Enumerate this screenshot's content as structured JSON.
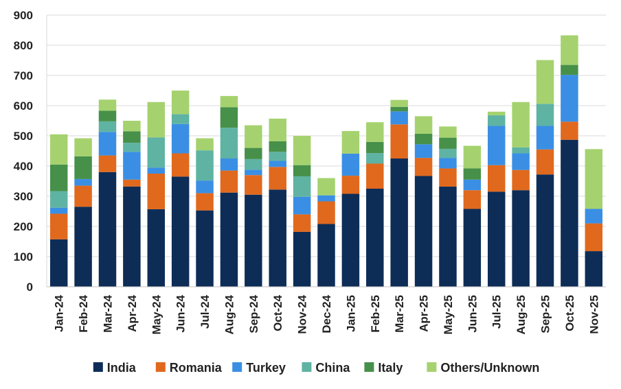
{
  "chart_data": {
    "type": "bar",
    "stacked": true,
    "title": "",
    "xlabel": "",
    "ylabel": "",
    "ylim": [
      0,
      900
    ],
    "yticks": [
      0,
      100,
      200,
      300,
      400,
      500,
      600,
      700,
      800,
      900
    ],
    "grid": true,
    "legend_position": "bottom",
    "categories": [
      "Jan-24",
      "Feb-24",
      "Mar-24",
      "Apr-24",
      "May-24",
      "Jun-24",
      "Jul-24",
      "Aug-24",
      "Sep-24",
      "Oct-24",
      "Nov-24",
      "Dec-24",
      "Jan-25",
      "Feb-25",
      "Mar-25",
      "Apr-25",
      "May-25",
      "Jun-25",
      "Jul-25",
      "Aug-25",
      "Sep-25",
      "Oct-25",
      "Nov-25"
    ],
    "series": [
      {
        "name": "India",
        "color": "#0d2d57",
        "values": [
          157,
          265,
          380,
          332,
          257,
          365,
          253,
          312,
          305,
          322,
          182,
          208,
          308,
          325,
          425,
          367,
          332,
          258,
          315,
          320,
          372,
          487,
          118
        ]
      },
      {
        "name": "Romania",
        "color": "#e0691e",
        "values": [
          85,
          70,
          55,
          23,
          118,
          77,
          57,
          73,
          65,
          75,
          58,
          75,
          60,
          83,
          113,
          60,
          60,
          62,
          88,
          67,
          83,
          60,
          92
        ]
      },
      {
        "name": "Turkey",
        "color": "#3a8fe4",
        "values": [
          20,
          22,
          78,
          92,
          20,
          97,
          42,
          40,
          18,
          20,
          58,
          20,
          73,
          0,
          43,
          45,
          35,
          35,
          130,
          55,
          78,
          155,
          48
        ]
      },
      {
        "name": "China",
        "color": "#5fb3a3",
        "values": [
          55,
          0,
          35,
          30,
          100,
          33,
          100,
          102,
          35,
          30,
          68,
          0,
          0,
          35,
          0,
          0,
          30,
          0,
          35,
          20,
          73,
          0,
          0
        ]
      },
      {
        "name": "Italy",
        "color": "#47904a",
        "values": [
          88,
          75,
          35,
          38,
          0,
          0,
          0,
          68,
          37,
          35,
          37,
          0,
          0,
          37,
          15,
          35,
          37,
          37,
          0,
          0,
          0,
          33,
          0
        ]
      },
      {
        "name": "Others/Unknown",
        "color": "#a5d26e",
        "values": [
          100,
          60,
          37,
          35,
          117,
          78,
          40,
          37,
          75,
          75,
          97,
          57,
          75,
          65,
          23,
          58,
          37,
          75,
          12,
          150,
          145,
          98,
          198
        ]
      }
    ]
  }
}
